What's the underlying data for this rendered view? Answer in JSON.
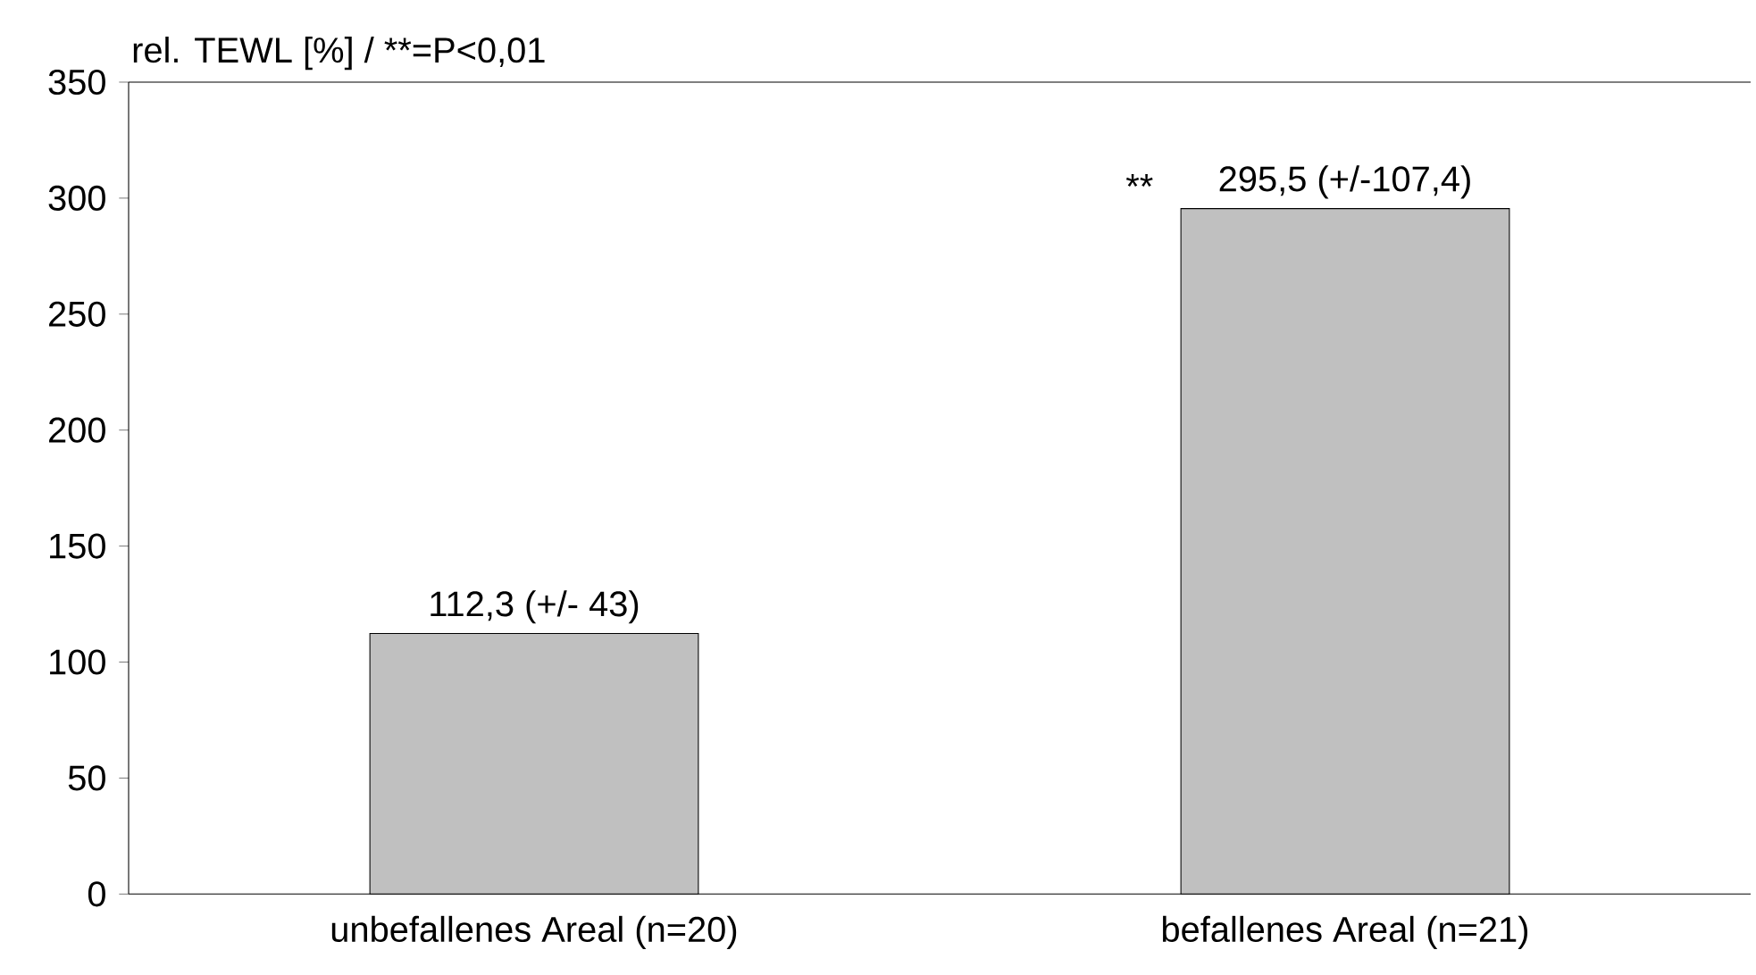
{
  "chart_data": {
    "type": "bar",
    "ylabel": "rel. TEWL [%] / **=P<0,01",
    "categories": [
      "unbefallenes Areal (n=20)",
      "befallenes Areal (n=21)"
    ],
    "values": [
      112.3,
      295.5
    ],
    "value_labels": [
      "112,3 (+/- 43)",
      "295,5 (+/-107,4)"
    ],
    "color": "#c0c0c0",
    "ylim": [
      0,
      350
    ],
    "yticks": [
      0,
      50,
      100,
      150,
      200,
      250,
      300,
      350
    ],
    "grid": false,
    "annotations": [
      "**"
    ]
  }
}
